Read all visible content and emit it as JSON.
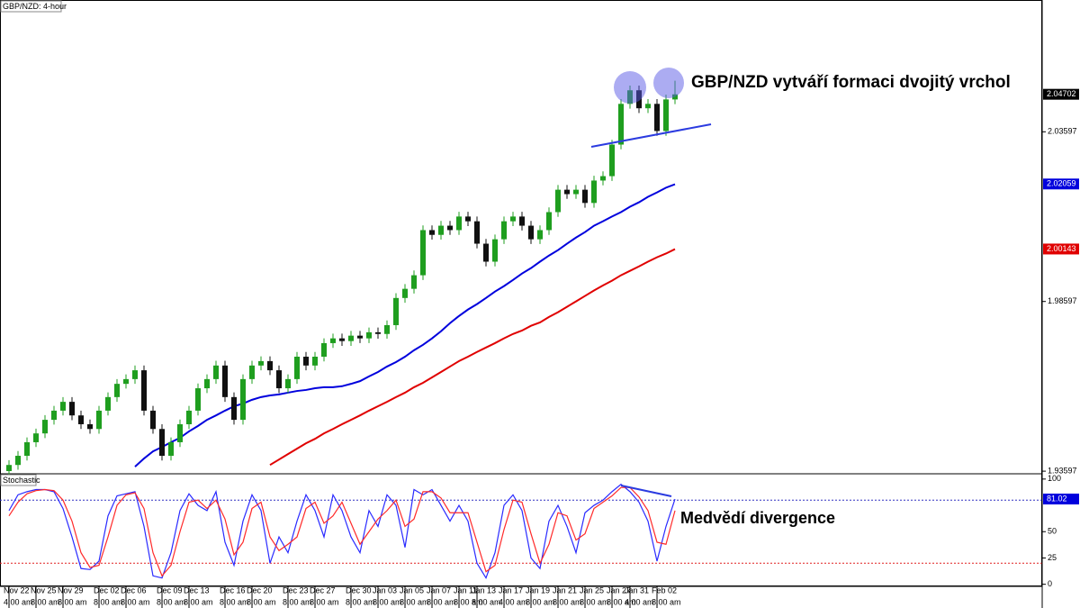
{
  "chart_data": [
    {
      "type": "candlestick",
      "title": "GBP/NZD: 4-hour",
      "annotation": "GBP/NZD vytváří formaci dvojitý vrchol",
      "categories": [
        "Nov 22",
        null,
        null,
        "Nov 25",
        null,
        null,
        "Nov 29",
        null,
        null,
        null,
        "Dec 02",
        null,
        null,
        "Dec 06",
        null,
        null,
        null,
        "Dec 09",
        null,
        null,
        "Dec 13",
        null,
        null,
        null,
        "Dec 16",
        null,
        null,
        "Dec 20",
        null,
        null,
        null,
        "Dec 23",
        null,
        null,
        "Dec 27",
        null,
        null,
        null,
        "Dec 30",
        null,
        null,
        "Jan 03",
        null,
        null,
        "Jan 05",
        null,
        null,
        "Jan 07",
        null,
        null,
        "Jan 11",
        null,
        "Jan 13",
        null,
        null,
        "Jan 17",
        null,
        null,
        "Jan 19",
        null,
        null,
        "Jan 21",
        null,
        null,
        "Jan 25",
        null,
        null,
        "Jan 27",
        null,
        "Jan 31",
        null,
        null,
        "Feb 02",
        null,
        null
      ],
      "times": [
        "4:00 am",
        null,
        null,
        "8:00 am",
        null,
        null,
        "8:00 am",
        null,
        null,
        null,
        "8:00 am",
        null,
        null,
        "8:00 am",
        null,
        null,
        null,
        "8:00 am",
        null,
        null,
        "8:00 am",
        null,
        null,
        null,
        "8:00 am",
        null,
        null,
        "8:00 am",
        null,
        null,
        null,
        "8:00 am",
        null,
        null,
        "8:00 am",
        null,
        null,
        null,
        "8:00 am",
        null,
        null,
        "8:00 am",
        null,
        null,
        "8:00 am",
        null,
        null,
        "8:00 am",
        null,
        null,
        "8:00 am",
        null,
        "8:00 am",
        null,
        null,
        "4:00 am",
        null,
        null,
        "8:00 am",
        null,
        null,
        "8:00 am",
        null,
        null,
        "8:00 am",
        null,
        null,
        "8:00 am",
        null,
        "4:00 am",
        null,
        null,
        "8:00 am",
        null,
        null
      ],
      "open": [
        1.936,
        1.9378,
        1.9405,
        1.9445,
        1.9471,
        1.9511,
        1.9538,
        1.9564,
        1.9524,
        1.9498,
        1.9484,
        1.9538,
        1.9578,
        1.9617,
        1.9631,
        1.9657,
        1.9538,
        1.9484,
        1.9405,
        1.9445,
        1.9498,
        1.9538,
        1.9604,
        1.9631,
        1.9671,
        1.9578,
        1.9511,
        1.9631,
        1.9671,
        1.9684,
        1.9657,
        1.9604,
        1.9631,
        1.9697,
        1.9671,
        1.9697,
        1.9737,
        1.9751,
        1.9743,
        1.9759,
        1.9751,
        1.9769,
        1.9764,
        1.979,
        1.987,
        1.9897,
        1.9937,
        2.007,
        2.0056,
        2.0083,
        2.007,
        2.011,
        2.0096,
        2.003,
        1.9977,
        2.0043,
        2.0096,
        2.011,
        2.0083,
        2.0043,
        2.007,
        2.0123,
        2.0189,
        2.0176,
        2.0189,
        2.015,
        2.0216,
        2.0229,
        2.0322,
        2.0442,
        2.0482,
        2.0429,
        2.0442,
        2.0362,
        2.0455
      ],
      "high": [
        1.9392,
        1.9419,
        1.9459,
        1.9485,
        1.9525,
        1.9552,
        1.9578,
        1.9578,
        1.9538,
        1.9512,
        1.9552,
        1.9592,
        1.9631,
        1.9645,
        1.9671,
        1.9671,
        1.9552,
        1.9498,
        1.9459,
        1.9512,
        1.9552,
        1.9618,
        1.9645,
        1.9685,
        1.9685,
        1.9592,
        1.9645,
        1.9685,
        1.9698,
        1.9698,
        1.9671,
        1.9645,
        1.9711,
        1.9711,
        1.9711,
        1.9751,
        1.9765,
        1.9765,
        1.9773,
        1.9773,
        1.9783,
        1.9783,
        1.9804,
        1.9884,
        1.9911,
        1.9951,
        2.0084,
        2.0084,
        2.0097,
        2.0097,
        2.0124,
        2.0124,
        2.011,
        2.0044,
        2.0057,
        2.011,
        2.0124,
        2.0124,
        2.0097,
        2.0084,
        2.0137,
        2.0203,
        2.0203,
        2.0203,
        2.0203,
        2.023,
        2.0243,
        2.0336,
        2.0456,
        2.0496,
        2.0496,
        2.0456,
        2.0456,
        2.0469,
        2.051
      ],
      "low": [
        1.9346,
        1.9364,
        1.9391,
        1.9431,
        1.9457,
        1.9497,
        1.9524,
        1.951,
        1.9484,
        1.947,
        1.947,
        1.9524,
        1.9564,
        1.9603,
        1.9617,
        1.9524,
        1.947,
        1.9391,
        1.9391,
        1.9431,
        1.9484,
        1.9524,
        1.959,
        1.9617,
        1.9564,
        1.9497,
        1.9497,
        1.9617,
        1.9657,
        1.9643,
        1.959,
        1.959,
        1.9617,
        1.9657,
        1.9657,
        1.9683,
        1.9723,
        1.9729,
        1.9729,
        1.9737,
        1.9737,
        1.975,
        1.975,
        1.9776,
        1.9856,
        1.9883,
        1.9923,
        2.0042,
        2.0042,
        2.0056,
        2.0056,
        2.0082,
        2.0016,
        1.9963,
        1.9963,
        2.0029,
        2.0082,
        2.0069,
        2.0029,
        2.0029,
        2.0056,
        2.0109,
        2.0162,
        2.0162,
        2.0136,
        2.0136,
        2.0202,
        2.0215,
        2.0308,
        2.0428,
        2.0415,
        2.0415,
        2.0348,
        2.0348,
        2.0441
      ],
      "close": [
        1.9378,
        1.9405,
        1.9445,
        1.9471,
        1.9511,
        1.9538,
        1.9564,
        1.9524,
        1.9498,
        1.9484,
        1.9538,
        1.9578,
        1.9617,
        1.9631,
        1.9657,
        1.9538,
        1.9484,
        1.9405,
        1.9445,
        1.9498,
        1.9538,
        1.9604,
        1.9631,
        1.9671,
        1.9578,
        1.9511,
        1.9631,
        1.9671,
        1.9684,
        1.9657,
        1.9604,
        1.9631,
        1.9697,
        1.9671,
        1.9697,
        1.9737,
        1.9751,
        1.9743,
        1.9759,
        1.9751,
        1.9769,
        1.9764,
        1.979,
        1.987,
        1.9897,
        1.9937,
        2.007,
        2.0056,
        2.0083,
        2.007,
        2.011,
        2.0096,
        2.003,
        1.9977,
        2.0043,
        2.0096,
        2.011,
        2.0083,
        2.0043,
        2.007,
        2.0123,
        2.0189,
        2.0176,
        2.0189,
        2.015,
        2.0216,
        2.0229,
        2.0322,
        2.0442,
        2.0482,
        2.0429,
        2.0442,
        2.0362,
        2.0455,
        2.047
      ],
      "up_color": "#1f9e1f",
      "down_color": "#111111",
      "overlays": [
        {
          "color": "#0000dd",
          "values": [
            null,
            null,
            null,
            null,
            null,
            null,
            null,
            null,
            null,
            null,
            null,
            null,
            null,
            null,
            1.9373,
            1.9397,
            1.9418,
            1.9431,
            1.9445,
            1.9458,
            1.9477,
            1.9493,
            1.9511,
            1.9524,
            1.9538,
            1.9551,
            1.9559,
            1.957,
            1.9578,
            1.9583,
            1.9586,
            1.9591,
            1.9596,
            1.9599,
            1.9604,
            1.9607,
            1.9607,
            1.961,
            1.9617,
            1.9625,
            1.9639,
            1.9652,
            1.9668,
            1.9681,
            1.9697,
            1.9716,
            1.9732,
            1.9751,
            1.9772,
            1.9796,
            1.9817,
            1.9836,
            1.9852,
            1.987,
            1.9889,
            1.9905,
            1.9923,
            1.9942,
            1.9958,
            1.9977,
            1.9995,
            2.0011,
            2.003,
            2.0048,
            2.0064,
            2.0083,
            2.0096,
            2.011,
            2.0123,
            2.0139,
            2.0152,
            2.0168,
            2.0181,
            2.0195,
            2.0205
          ]
        },
        {
          "color": "#e00000",
          "values": [
            null,
            null,
            null,
            null,
            null,
            null,
            null,
            null,
            null,
            null,
            null,
            null,
            null,
            null,
            null,
            null,
            null,
            null,
            null,
            null,
            null,
            null,
            null,
            null,
            null,
            null,
            null,
            null,
            null,
            1.9378,
            1.9394,
            1.941,
            1.9426,
            1.9442,
            1.9455,
            1.9471,
            1.9484,
            1.9498,
            1.9511,
            1.9524,
            1.9538,
            1.9551,
            1.9564,
            1.9578,
            1.9591,
            1.9607,
            1.962,
            1.9636,
            1.9652,
            1.9668,
            1.9684,
            1.9697,
            1.9711,
            1.9724,
            1.9737,
            1.9751,
            1.9764,
            1.9774,
            1.9788,
            1.9798,
            1.9814,
            1.9828,
            1.9844,
            1.986,
            1.9876,
            1.9892,
            1.9907,
            1.9921,
            1.9937,
            1.995,
            1.9963,
            1.9977,
            1.999,
            2.0001,
            2.0014
          ]
        }
      ],
      "ylim": [
        1.9352,
        2.0748
      ],
      "yticks": [
        1.93597,
        1.98597,
        2.03597
      ],
      "price_labels": [
        {
          "value": 2.04702,
          "color": "#000000"
        },
        {
          "value": 2.02059,
          "color": "#0000dd"
        },
        {
          "value": 2.00143,
          "color": "#e00000"
        }
      ]
    },
    {
      "type": "line",
      "title": "Stochastic",
      "annotation": "Medvědí divergence",
      "series": [
        {
          "color": "#2a2aff",
          "values": [
            70,
            85,
            88,
            90,
            90,
            88,
            72,
            45,
            15,
            14,
            22,
            65,
            84,
            86,
            88,
            55,
            8,
            6,
            30,
            70,
            86,
            75,
            70,
            88,
            40,
            18,
            60,
            85,
            70,
            20,
            45,
            30,
            60,
            85,
            70,
            45,
            85,
            70,
            45,
            30,
            70,
            55,
            85,
            75,
            35,
            90,
            85,
            90,
            75,
            60,
            75,
            60,
            20,
            6,
            30,
            75,
            85,
            70,
            25,
            15,
            60,
            75,
            55,
            30,
            68,
            75,
            80,
            88,
            95,
            88,
            78,
            60,
            22,
            55,
            81
          ]
        },
        {
          "color": "#ff2a2a",
          "values": [
            65,
            78,
            86,
            89,
            90,
            89,
            80,
            60,
            30,
            16,
            18,
            45,
            75,
            85,
            87,
            72,
            30,
            8,
            18,
            50,
            78,
            80,
            72,
            80,
            62,
            28,
            40,
            72,
            78,
            45,
            32,
            38,
            45,
            72,
            78,
            58,
            65,
            78,
            58,
            38,
            50,
            62,
            70,
            80,
            55,
            62,
            88,
            88,
            82,
            68,
            68,
            68,
            40,
            12,
            18,
            52,
            80,
            78,
            48,
            20,
            38,
            68,
            65,
            42,
            48,
            72,
            78,
            84,
            92,
            92,
            83,
            70,
            40,
            38,
            70
          ]
        }
      ],
      "levels": [
        {
          "value": 80,
          "color": "#3030c0"
        },
        {
          "value": 20,
          "color": "#e02020"
        }
      ],
      "ylim": [
        -2,
        105
      ],
      "yticks": [
        0,
        25,
        50,
        100
      ],
      "price_labels": [
        {
          "value": 81.02,
          "color": "#0000dd"
        }
      ]
    }
  ]
}
